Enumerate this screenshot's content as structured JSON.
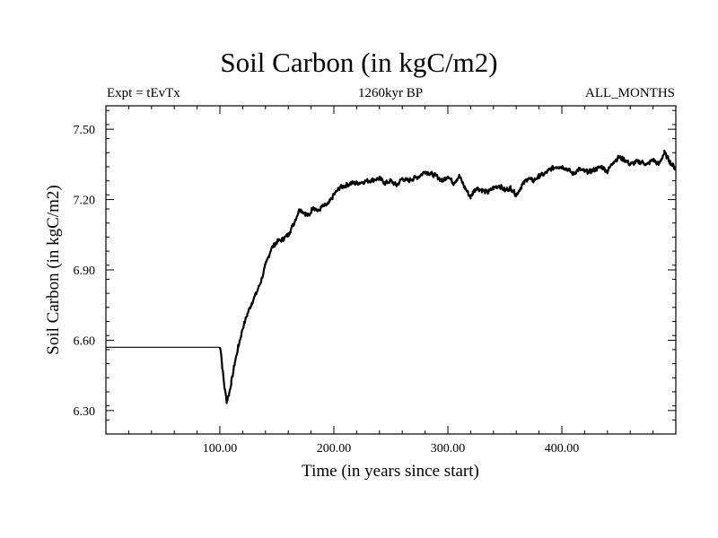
{
  "chart_data": {
    "type": "line",
    "title": "Soil Carbon (in kgC/m2)",
    "subtitle_left": "Expt = tEvTx",
    "subtitle_center": "1260kyr BP",
    "subtitle_right": "ALL_MONTHS",
    "xlabel": "Time (in years since start)",
    "ylabel": "Soil Carbon (in kgC/m2)",
    "xlim": [
      0,
      500
    ],
    "ylim": [
      6.2,
      7.6
    ],
    "xticks": [
      100,
      200,
      300,
      400
    ],
    "xtick_labels": [
      "100.00",
      "200.00",
      "300.00",
      "400.00"
    ],
    "yticks": [
      6.3,
      6.6,
      6.9,
      7.2,
      7.5
    ],
    "ytick_labels": [
      "6.30",
      "6.60",
      "6.90",
      "7.20",
      "7.50"
    ],
    "grid": false,
    "series": [
      {
        "name": "Soil Carbon",
        "x": [
          0,
          100,
          101,
          102,
          104,
          106,
          108,
          110,
          113,
          116,
          120,
          124,
          128,
          132,
          136,
          140,
          145,
          150,
          155,
          160,
          165,
          170,
          175,
          178,
          182,
          186,
          190,
          195,
          200,
          205,
          210,
          215,
          220,
          230,
          240,
          245,
          250,
          255,
          260,
          265,
          270,
          275,
          280,
          285,
          290,
          295,
          300,
          305,
          310,
          315,
          320,
          322,
          325,
          330,
          335,
          340,
          345,
          350,
          355,
          360,
          365,
          370,
          375,
          380,
          385,
          390,
          395,
          400,
          405,
          410,
          415,
          420,
          425,
          430,
          435,
          440,
          445,
          450,
          455,
          460,
          465,
          470,
          475,
          480,
          485,
          490,
          495,
          500
        ],
        "values": [
          6.57,
          6.57,
          6.55,
          6.49,
          6.4,
          6.34,
          6.37,
          6.42,
          6.5,
          6.57,
          6.65,
          6.71,
          6.76,
          6.8,
          6.85,
          6.92,
          6.99,
          7.02,
          7.03,
          7.05,
          7.1,
          7.16,
          7.14,
          7.13,
          7.17,
          7.15,
          7.17,
          7.18,
          7.22,
          7.25,
          7.26,
          7.27,
          7.27,
          7.28,
          7.29,
          7.27,
          7.28,
          7.26,
          7.29,
          7.28,
          7.29,
          7.3,
          7.32,
          7.31,
          7.3,
          7.28,
          7.3,
          7.27,
          7.3,
          7.25,
          7.21,
          7.23,
          7.25,
          7.24,
          7.23,
          7.25,
          7.26,
          7.24,
          7.25,
          7.22,
          7.26,
          7.29,
          7.28,
          7.3,
          7.31,
          7.33,
          7.34,
          7.34,
          7.33,
          7.31,
          7.33,
          7.32,
          7.32,
          7.33,
          7.34,
          7.32,
          7.36,
          7.38,
          7.37,
          7.35,
          7.36,
          7.36,
          7.35,
          7.37,
          7.35,
          7.4,
          7.36,
          7.33
        ]
      }
    ]
  }
}
